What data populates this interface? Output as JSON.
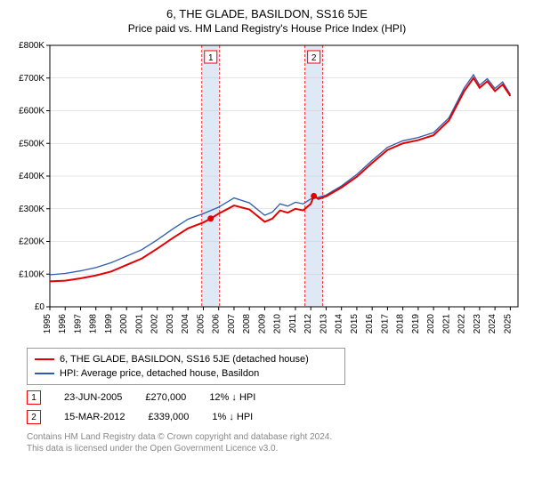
{
  "title": "6, THE GLADE, BASILDON, SS16 5JE",
  "subtitle": "Price paid vs. HM Land Registry's House Price Index (HPI)",
  "chart": {
    "background_color": "#ffffff",
    "plot_border_color": "#000000",
    "grid_color": "#cccccc",
    "marker_band_color": "#dfe8f5",
    "marker_line_color": "#ff0000",
    "y": {
      "label_prefix": "£",
      "min": 0,
      "max": 800,
      "step": 100,
      "ticks": [
        "£0",
        "£100K",
        "£200K",
        "£300K",
        "£400K",
        "£500K",
        "£600K",
        "£700K",
        "£800K"
      ],
      "tick_font_size": 10
    },
    "x": {
      "min": 1995,
      "max": 2025.5,
      "ticks": [
        1995,
        1996,
        1997,
        1998,
        1999,
        2000,
        2001,
        2002,
        2003,
        2004,
        2005,
        2006,
        2007,
        2008,
        2009,
        2010,
        2011,
        2012,
        2013,
        2014,
        2015,
        2016,
        2017,
        2018,
        2019,
        2020,
        2021,
        2022,
        2023,
        2024,
        2025
      ],
      "tick_font_size": 10
    },
    "series": [
      {
        "id": "subject",
        "label": "6, THE GLADE, BASILDON, SS16 5JE (detached house)",
        "color": "#e30000",
        "width": 2,
        "data": [
          [
            1995,
            78
          ],
          [
            1996,
            80
          ],
          [
            1997,
            87
          ],
          [
            1998,
            96
          ],
          [
            1999,
            108
          ],
          [
            2000,
            128
          ],
          [
            2001,
            148
          ],
          [
            2002,
            178
          ],
          [
            2003,
            210
          ],
          [
            2004,
            240
          ],
          [
            2005,
            258
          ],
          [
            2005.48,
            270
          ],
          [
            2006,
            285
          ],
          [
            2007,
            310
          ],
          [
            2008,
            298
          ],
          [
            2009,
            260
          ],
          [
            2009.5,
            270
          ],
          [
            2010,
            295
          ],
          [
            2010.5,
            288
          ],
          [
            2011,
            300
          ],
          [
            2011.5,
            295
          ],
          [
            2012,
            315
          ],
          [
            2012.2,
            339
          ],
          [
            2012.5,
            330
          ],
          [
            2013,
            338
          ],
          [
            2014,
            365
          ],
          [
            2015,
            398
          ],
          [
            2016,
            440
          ],
          [
            2017,
            480
          ],
          [
            2018,
            500
          ],
          [
            2019,
            510
          ],
          [
            2020,
            525
          ],
          [
            2021,
            570
          ],
          [
            2022,
            660
          ],
          [
            2022.6,
            700
          ],
          [
            2023,
            670
          ],
          [
            2023.5,
            690
          ],
          [
            2024,
            660
          ],
          [
            2024.5,
            680
          ],
          [
            2025,
            645
          ]
        ]
      },
      {
        "id": "hpi",
        "label": "HPI: Average price, detached house, Basildon",
        "color": "#2b5cb0",
        "width": 1.3,
        "data": [
          [
            1995,
            98
          ],
          [
            1996,
            102
          ],
          [
            1997,
            110
          ],
          [
            1998,
            120
          ],
          [
            1999,
            135
          ],
          [
            2000,
            155
          ],
          [
            2001,
            175
          ],
          [
            2002,
            205
          ],
          [
            2003,
            238
          ],
          [
            2004,
            268
          ],
          [
            2005,
            285
          ],
          [
            2006,
            305
          ],
          [
            2007,
            333
          ],
          [
            2008,
            318
          ],
          [
            2009,
            280
          ],
          [
            2009.5,
            290
          ],
          [
            2010,
            315
          ],
          [
            2010.5,
            308
          ],
          [
            2011,
            320
          ],
          [
            2011.5,
            315
          ],
          [
            2012,
            330
          ],
          [
            2012.5,
            335
          ],
          [
            2013,
            342
          ],
          [
            2014,
            370
          ],
          [
            2015,
            405
          ],
          [
            2016,
            448
          ],
          [
            2017,
            488
          ],
          [
            2018,
            508
          ],
          [
            2019,
            518
          ],
          [
            2020,
            533
          ],
          [
            2021,
            578
          ],
          [
            2022,
            670
          ],
          [
            2022.6,
            710
          ],
          [
            2023,
            678
          ],
          [
            2023.5,
            698
          ],
          [
            2024,
            668
          ],
          [
            2024.5,
            688
          ],
          [
            2025,
            650
          ]
        ]
      }
    ],
    "transactions": [
      {
        "n": "1",
        "year": 2005.48,
        "price": 270,
        "date": "23-JUN-2005",
        "price_label": "£270,000",
        "diff": "12% ↓ HPI"
      },
      {
        "n": "2",
        "year": 2012.2,
        "price": 339,
        "date": "15-MAR-2012",
        "price_label": "£339,000",
        "diff": "1% ↓ HPI"
      }
    ]
  },
  "legend": {
    "border_color": "#999999"
  },
  "footer": {
    "line1": "Contains HM Land Registry data © Crown copyright and database right 2024.",
    "line2": "This data is licensed under the Open Government Licence v3.0."
  }
}
